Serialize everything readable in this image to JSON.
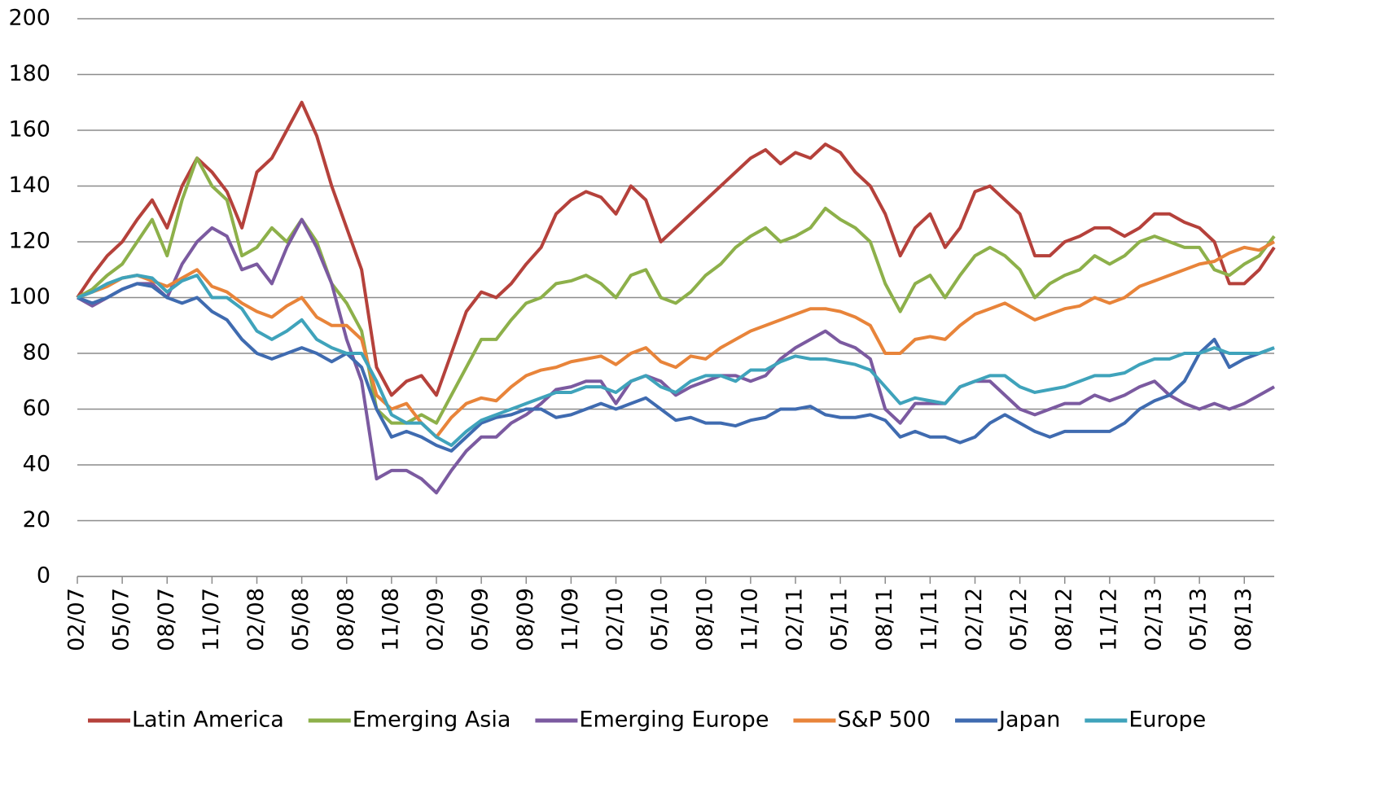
{
  "chart_data": {
    "type": "line",
    "categories": [
      "02/07",
      null,
      null,
      "05/07",
      null,
      null,
      "08/07",
      null,
      null,
      "11/07",
      null,
      null,
      "02/08",
      null,
      null,
      "05/08",
      null,
      null,
      "08/08",
      null,
      null,
      "11/08",
      null,
      null,
      "02/09",
      null,
      null,
      "05/09",
      null,
      null,
      "08/09",
      null,
      null,
      "11/09",
      null,
      null,
      "02/10",
      null,
      null,
      "05/10",
      null,
      null,
      "08/10",
      null,
      null,
      "11/10",
      null,
      null,
      "02/11",
      null,
      null,
      "05/11",
      null,
      null,
      "08/11",
      null,
      null,
      "11/11",
      null,
      null,
      "02/12",
      null,
      null,
      "05/12",
      null,
      null,
      "08/12",
      null,
      null,
      "11/12",
      null,
      null,
      "02/13",
      null,
      null,
      "05/13",
      null,
      null,
      "08/13",
      null,
      null
    ],
    "series": [
      {
        "name": "Latin America",
        "color": "#b5413b",
        "values": [
          100,
          108,
          115,
          120,
          128,
          135,
          125,
          140,
          150,
          145,
          138,
          125,
          145,
          150,
          160,
          170,
          158,
          140,
          125,
          110,
          75,
          65,
          70,
          72,
          65,
          80,
          95,
          102,
          100,
          105,
          112,
          118,
          130,
          135,
          138,
          136,
          130,
          140,
          135,
          120,
          125,
          130,
          135,
          140,
          145,
          150,
          153,
          148,
          152,
          150,
          155,
          152,
          145,
          140,
          130,
          115,
          125,
          130,
          118,
          125,
          138,
          140,
          135,
          130,
          115,
          115,
          120,
          122,
          125,
          125,
          122,
          125,
          130,
          130,
          127,
          125,
          120,
          105,
          105,
          110,
          118
        ]
      },
      {
        "name": "Emerging Asia",
        "color": "#8db04a",
        "values": [
          100,
          103,
          108,
          112,
          120,
          128,
          115,
          135,
          150,
          140,
          135,
          115,
          118,
          125,
          120,
          128,
          120,
          105,
          98,
          88,
          60,
          55,
          55,
          58,
          55,
          65,
          75,
          85,
          85,
          92,
          98,
          100,
          105,
          106,
          108,
          105,
          100,
          108,
          110,
          100,
          98,
          102,
          108,
          112,
          118,
          122,
          125,
          120,
          122,
          125,
          132,
          128,
          125,
          120,
          105,
          95,
          105,
          108,
          100,
          108,
          115,
          118,
          115,
          110,
          100,
          105,
          108,
          110,
          115,
          112,
          115,
          120,
          122,
          120,
          118,
          118,
          110,
          108,
          112,
          115,
          122
        ]
      },
      {
        "name": "Emerging Europe",
        "color": "#7b5aa0",
        "values": [
          100,
          97,
          100,
          103,
          105,
          105,
          100,
          112,
          120,
          125,
          122,
          110,
          112,
          105,
          118,
          128,
          118,
          105,
          85,
          70,
          35,
          38,
          38,
          35,
          30,
          38,
          45,
          50,
          50,
          55,
          58,
          62,
          67,
          68,
          70,
          70,
          62,
          70,
          72,
          70,
          65,
          68,
          70,
          72,
          72,
          70,
          72,
          78,
          82,
          85,
          88,
          84,
          82,
          78,
          60,
          55,
          62,
          62,
          62,
          68,
          70,
          70,
          65,
          60,
          58,
          60,
          62,
          62,
          65,
          63,
          65,
          68,
          70,
          65,
          62,
          60,
          62,
          60,
          62,
          65,
          68
        ]
      },
      {
        "name": "S&P 500",
        "color": "#e8843a",
        "values": [
          100,
          102,
          104,
          107,
          108,
          106,
          104,
          107,
          110,
          104,
          102,
          98,
          95,
          93,
          97,
          100,
          93,
          90,
          90,
          85,
          65,
          60,
          62,
          55,
          50,
          57,
          62,
          64,
          63,
          68,
          72,
          74,
          75,
          77,
          78,
          79,
          76,
          80,
          82,
          77,
          75,
          79,
          78,
          82,
          85,
          88,
          90,
          92,
          94,
          96,
          96,
          95,
          93,
          90,
          80,
          80,
          85,
          86,
          85,
          90,
          94,
          96,
          98,
          95,
          92,
          94,
          96,
          97,
          100,
          98,
          100,
          104,
          106,
          108,
          110,
          112,
          113,
          116,
          118,
          117,
          120
        ]
      },
      {
        "name": "Japan",
        "color": "#3f6bb0",
        "values": [
          100,
          98,
          100,
          103,
          105,
          104,
          100,
          98,
          100,
          95,
          92,
          85,
          80,
          78,
          80,
          82,
          80,
          77,
          80,
          75,
          60,
          50,
          52,
          50,
          47,
          45,
          50,
          55,
          57,
          58,
          60,
          60,
          57,
          58,
          60,
          62,
          60,
          62,
          64,
          60,
          56,
          57,
          55,
          55,
          54,
          56,
          57,
          60,
          60,
          61,
          58,
          57,
          57,
          58,
          56,
          50,
          52,
          50,
          50,
          48,
          50,
          55,
          58,
          55,
          52,
          50,
          52,
          52,
          52,
          52,
          55,
          60,
          63,
          65,
          70,
          80,
          85,
          75,
          78,
          80,
          82
        ]
      },
      {
        "name": "Europe",
        "color": "#3fa3bb",
        "values": [
          100,
          102,
          105,
          107,
          108,
          107,
          102,
          106,
          108,
          100,
          100,
          96,
          88,
          85,
          88,
          92,
          85,
          82,
          80,
          80,
          70,
          58,
          55,
          55,
          50,
          47,
          52,
          56,
          58,
          60,
          62,
          64,
          66,
          66,
          68,
          68,
          66,
          70,
          72,
          68,
          66,
          70,
          72,
          72,
          70,
          74,
          74,
          77,
          79,
          78,
          78,
          77,
          76,
          74,
          68,
          62,
          64,
          63,
          62,
          68,
          70,
          72,
          72,
          68,
          66,
          67,
          68,
          70,
          72,
          72,
          73,
          76,
          78,
          78,
          80,
          80,
          82,
          80,
          80,
          80,
          82
        ]
      }
    ],
    "ylim": [
      0,
      200
    ],
    "yticks": [
      0,
      20,
      40,
      60,
      80,
      100,
      120,
      140,
      160,
      180,
      200
    ],
    "grid": true,
    "legend": "bottom"
  }
}
